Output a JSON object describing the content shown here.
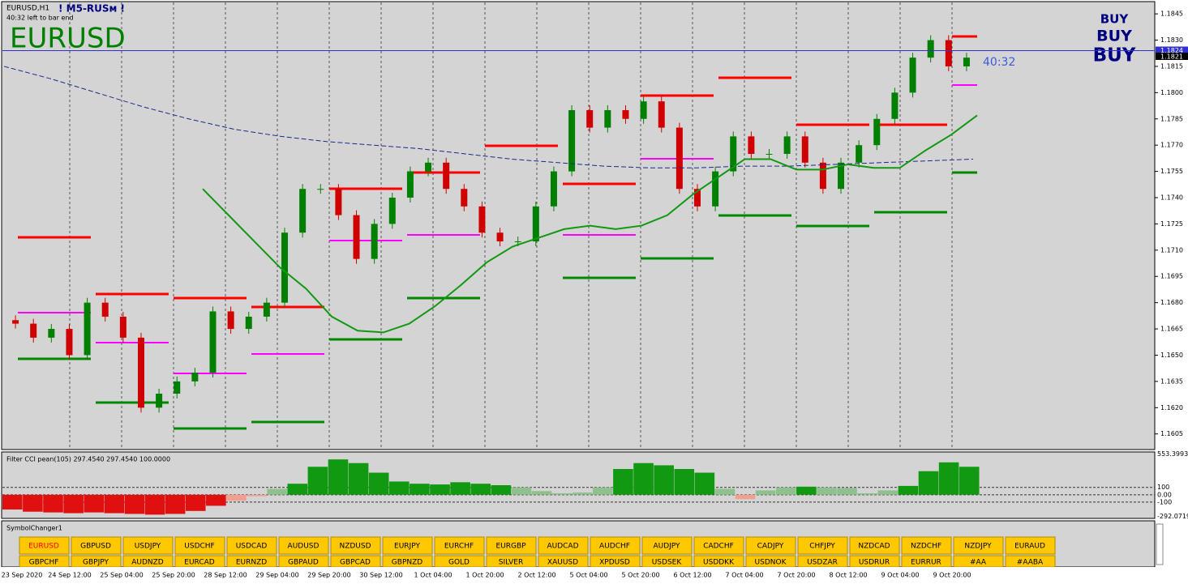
{
  "window": {
    "symbol_period": "EURUSD,H1",
    "indicator_name": "! M5-RUSм !",
    "timer_note": "40:32 left to bar end",
    "symbol": "EURUSD",
    "timer": "40:32",
    "signals": [
      "BUY",
      "BUY",
      "BUY"
    ]
  },
  "price_axis": {
    "ylim": [
      1.1597,
      1.1852
    ],
    "ticks": [
      1.1845,
      {
        "value": 1.183,
        "label": "1.1830"
      },
      1.1815,
      {
        "value": 1.18,
        "label": "1.1800"
      },
      1.1785,
      {
        "value": 1.177,
        "label": "1.1770"
      },
      1.1755,
      {
        "value": 1.174,
        "label": "1.1740"
      },
      1.1725,
      {
        "value": 1.171,
        "label": "1.1710"
      },
      1.1695,
      {
        "value": 1.168,
        "label": "1.1680"
      },
      1.1665,
      {
        "value": 1.165,
        "label": "1.1650"
      },
      1.1635,
      {
        "value": 1.162,
        "label": "1.1620"
      },
      1.1605
    ],
    "ask": 1.1824,
    "bid": 1.1821
  },
  "price": {
    "open": 1.167,
    "closes": [
      1.1668,
      1.166,
      1.1665,
      1.165,
      1.168,
      1.1672,
      1.166,
      1.162,
      1.1628,
      1.1635,
      1.164,
      1.1675,
      1.1665,
      1.1672,
      1.168,
      1.172,
      1.1745,
      1.1745,
      1.173,
      1.1705,
      1.1725,
      1.174,
      1.1755,
      1.176,
      1.1745,
      1.1735,
      1.172,
      1.1715,
      1.1715,
      1.1735,
      1.1755,
      1.179,
      1.178,
      1.179,
      1.1785,
      1.1795,
      1.178,
      1.1745,
      1.1735,
      1.1755,
      1.1775,
      1.1765,
      1.1765,
      1.1775,
      1.176,
      1.1745,
      1.176,
      1.177,
      1.1785,
      1.18,
      1.182,
      1.183,
      1.1815,
      1.182
    ],
    "slow_ma": [
      1.1815,
      1.1808,
      1.18,
      1.1792,
      1.1785,
      1.1779,
      1.1775,
      1.1772,
      1.177,
      1.1768,
      1.1765,
      1.1762,
      1.176,
      1.1758,
      1.1757,
      1.1757,
      1.1758,
      1.1758,
      1.1759,
      1.176,
      1.1761,
      1.1762
    ],
    "fast_ma": [
      1.1745,
      1.173,
      1.1715,
      1.17,
      1.1688,
      1.1672,
      1.1664,
      1.1663,
      1.1668,
      1.1678,
      1.169,
      1.1703,
      1.1712,
      1.1717,
      1.1722,
      1.1724,
      1.1722,
      1.1724,
      1.173,
      1.1742,
      1.1752,
      1.1762,
      1.1762,
      1.1756,
      1.1756,
      1.1759,
      1.1757,
      1.1757,
      1.1767,
      1.1776,
      1.1787
    ]
  },
  "indicator": {
    "label": "Filter CCI pean(105) 297.4540 297.4540 100.0000",
    "ylim": [
      -310,
      570
    ],
    "ticks": [
      {
        "value": 553.3993,
        "label": "553.3993"
      },
      100,
      {
        "value": 0,
        "label": "0.00"
      },
      -100,
      {
        "value": -292.0719,
        "label": "-292.0719"
      }
    ],
    "values": [
      -200,
      -230,
      -240,
      -250,
      -240,
      -250,
      -260,
      -270,
      -260,
      -220,
      -150,
      -80,
      -20,
      80,
      150,
      380,
      480,
      430,
      300,
      180,
      150,
      140,
      170,
      150,
      130,
      100,
      50,
      20,
      30,
      100,
      350,
      430,
      400,
      350,
      300,
      80,
      -60,
      60,
      100,
      110,
      100,
      90,
      20,
      60,
      120,
      320,
      440,
      380
    ]
  },
  "symbol_changer": {
    "title": "SymbolChanger1",
    "row1": [
      "EURUSD",
      "GBPUSD",
      "USDJPY",
      "USDCHF",
      "USDCAD",
      "AUDUSD",
      "NZDUSD",
      "EURJPY",
      "EURCHF",
      "EURGBP",
      "AUDCAD",
      "AUDCHF",
      "AUDJPY",
      "CADCHF",
      "CADJPY",
      "CHFJPY",
      "NZDCAD",
      "NZDCHF",
      "NZDJPY",
      "EURAUD"
    ],
    "row2": [
      "GBPCHF",
      "GBPJPY",
      "AUDNZD",
      "EURCAD",
      "EURNZD",
      "GBPAUD",
      "GBPCAD",
      "GBPNZD",
      "GOLD",
      "SILVER",
      "XAUUSD",
      "XPDUSD",
      "USDSEK",
      "USDDKK",
      "USDNOK",
      "USDZAR",
      "USDRUR",
      "EURRUR",
      "#AA",
      "#AABA"
    ]
  },
  "time_axis": [
    "23 Sep 2020",
    "24 Sep 12:00",
    "25 Sep 04:00",
    "25 Sep 20:00",
    "28 Sep 12:00",
    "29 Sep 04:00",
    "29 Sep 20:00",
    "30 Sep 12:00",
    "1 Oct 04:00",
    "1 Oct 20:00",
    "2 Oct 12:00",
    "5 Oct 04:00",
    "5 Oct 20:00",
    "6 Oct 12:00",
    "7 Oct 04:00",
    "7 Oct 20:00",
    "8 Oct 12:00",
    "9 Oct 04:00",
    "9 Oct 20:00"
  ]
}
